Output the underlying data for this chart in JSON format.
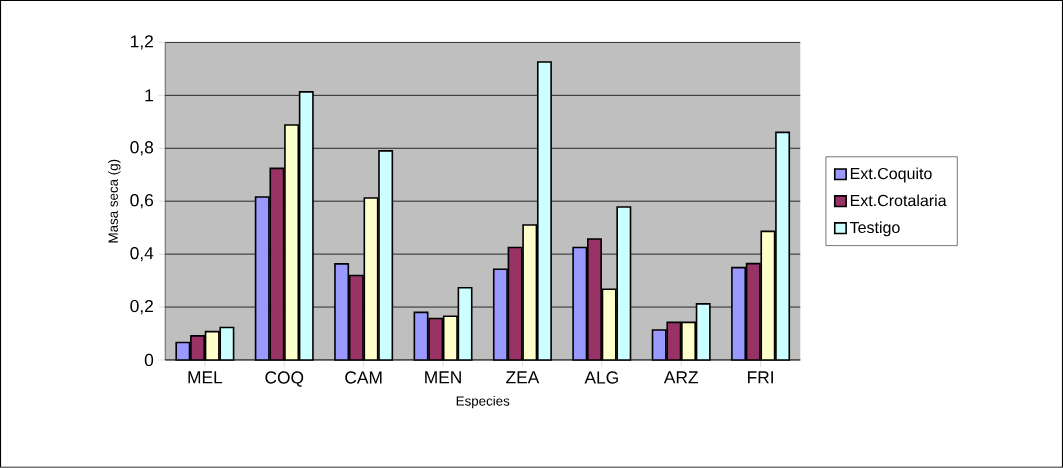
{
  "chart_data": {
    "type": "bar",
    "xlabel": "Especies",
    "ylabel": "Masa seca (g)",
    "categories": [
      "MEL",
      "COQ",
      "CAM",
      "MEN",
      "ZEA",
      "ALG",
      "ARZ",
      "FRI"
    ],
    "series": [
      {
        "name": "Ext.Coquito",
        "color": "#9999ff",
        "values": [
          0.066,
          0.616,
          0.363,
          0.18,
          0.343,
          0.425,
          0.113,
          0.349
        ]
      },
      {
        "name": "Ext.Crotalaria",
        "color": "#993366",
        "values": [
          0.091,
          0.724,
          0.319,
          0.157,
          0.425,
          0.457,
          0.142,
          0.364
        ]
      },
      {
        "color": "#ffffcc",
        "values": [
          0.107,
          0.888,
          0.612,
          0.165,
          0.51,
          0.267,
          0.142,
          0.486
        ]
      },
      {
        "name": "Testigo",
        "color": "#ccffff",
        "values": [
          0.123,
          1.013,
          0.79,
          0.273,
          1.126,
          0.578,
          0.212,
          0.86
        ]
      }
    ],
    "ylim": [
      0,
      1.2
    ],
    "yticks": [
      0,
      {
        "value": 0.2,
        "label": "0,2"
      },
      {
        "value": 0.4,
        "label": "0,4"
      },
      {
        "value": 0.6,
        "label": "0,6"
      },
      {
        "value": 0.8,
        "label": "0,8"
      },
      1,
      {
        "value": 1.2,
        "label": "1,2"
      }
    ],
    "grid": "y",
    "legend": "right"
  }
}
